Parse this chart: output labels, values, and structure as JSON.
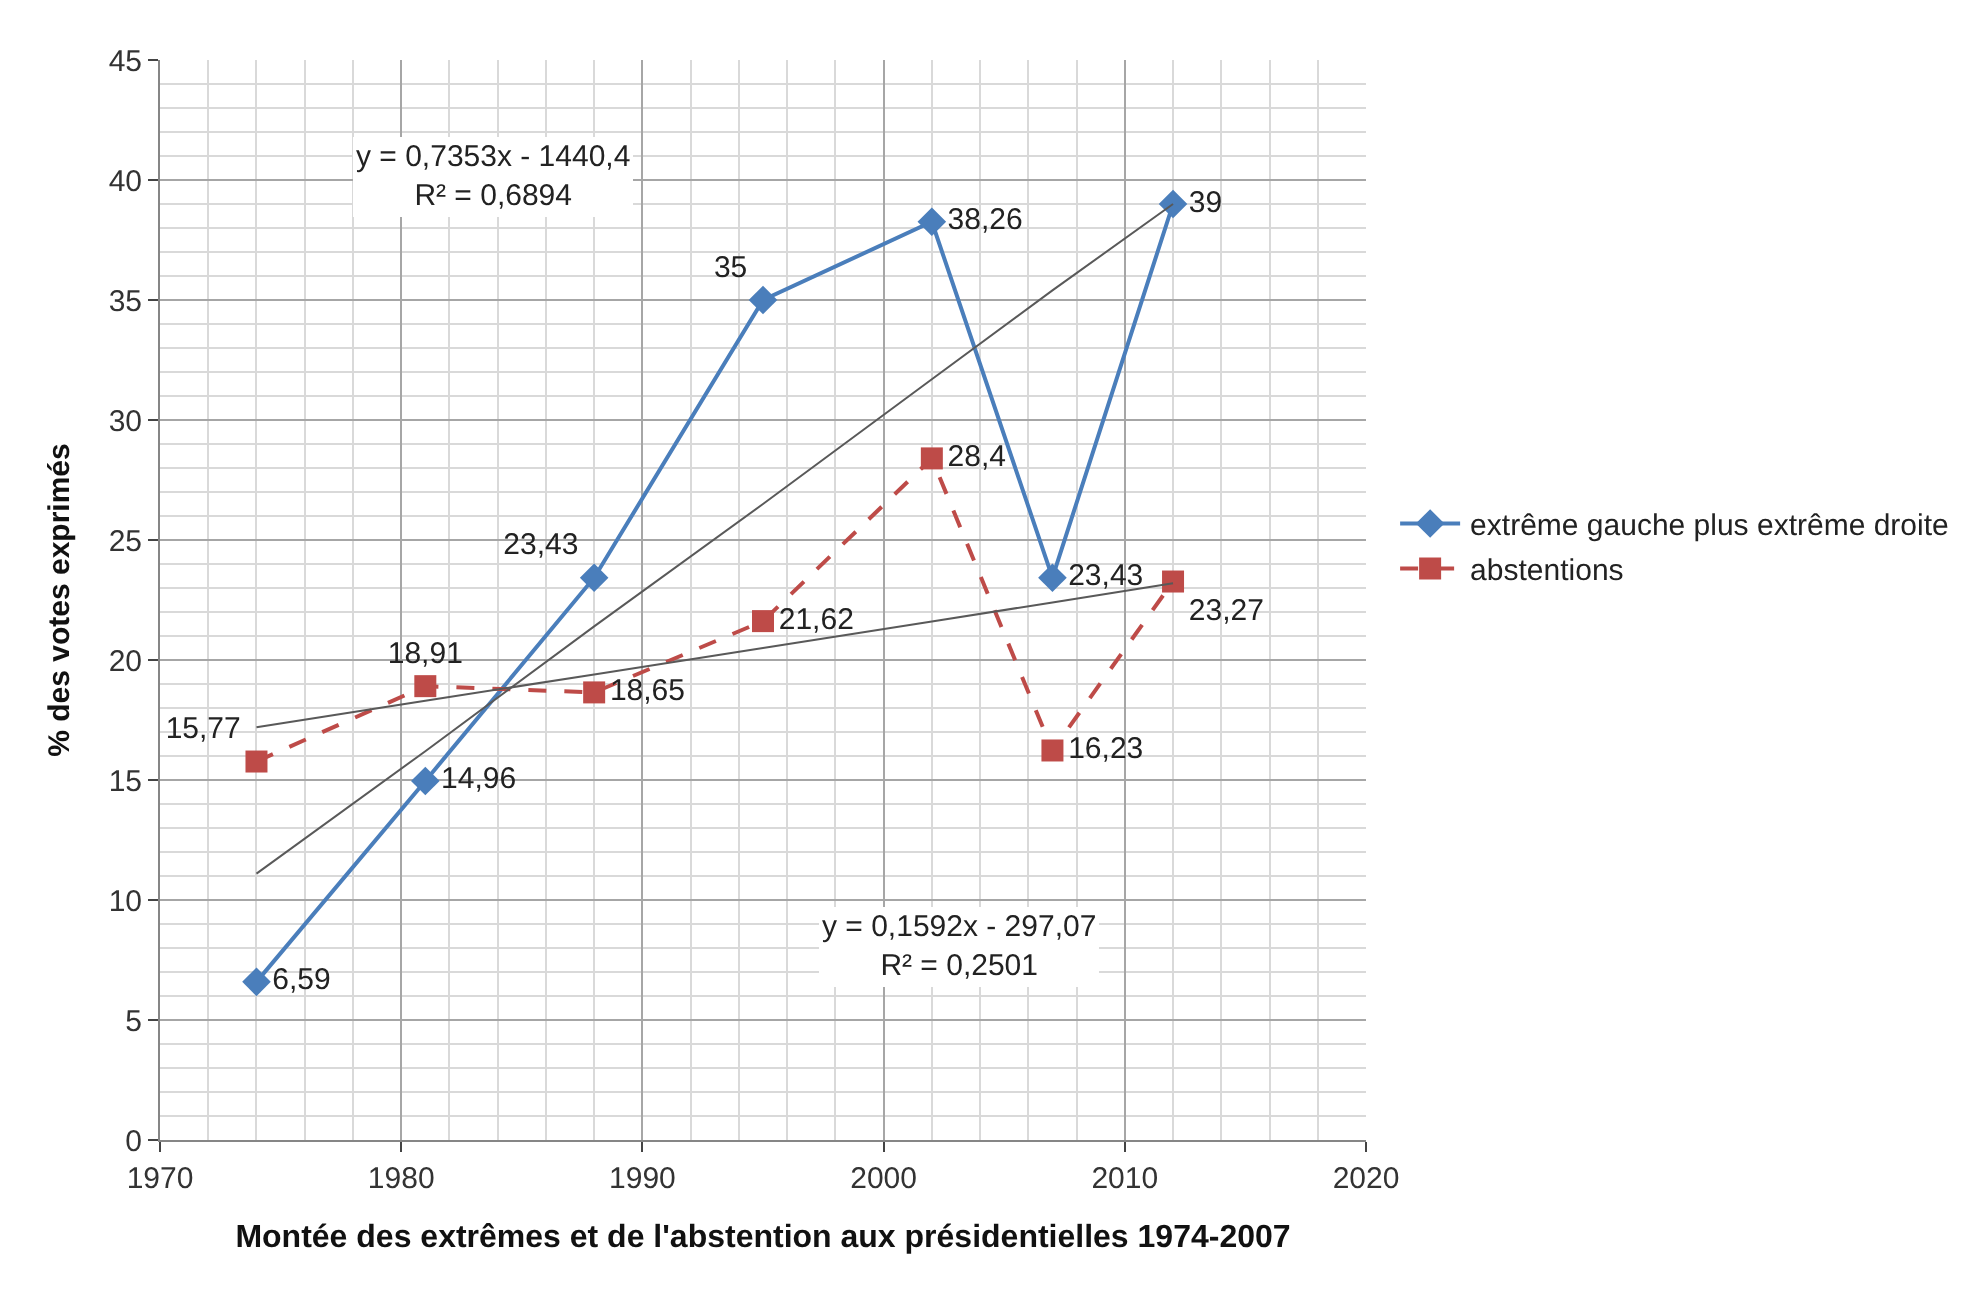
{
  "chart_data": {
    "type": "line",
    "xlabel": "Montée des extrêmes et de l'abstention aux présidentielles 1974-2007",
    "ylabel": "% des votes exprimés",
    "x": [
      1974,
      1981,
      1988,
      1995,
      2002,
      2007,
      2012
    ],
    "series": [
      {
        "name": "extrême gauche plus extrême droite",
        "color": "#4a7ebb",
        "marker": "diamond",
        "line_style": "solid",
        "values": [
          6.59,
          14.96,
          23.43,
          35,
          38.26,
          23.43,
          39
        ],
        "value_labels": [
          "6,59",
          "14,96",
          "23,43",
          "35",
          "38,26",
          "23,43",
          "39"
        ]
      },
      {
        "name": "abstentions",
        "color": "#be4b48",
        "marker": "square",
        "line_style": "dashed",
        "values": [
          15.77,
          18.91,
          18.65,
          21.62,
          28.4,
          16.23,
          23.27
        ],
        "value_labels": [
          "15,77",
          "18,91",
          "18,65",
          "21,62",
          "28,4",
          "16,23",
          "23,27"
        ]
      },
      {
        "type": "line",
        "color": "#595959",
        "marker": "none",
        "line_style": "solid",
        "values": [
          11.1,
          16.2,
          21.4,
          26.5,
          31.7,
          35.4,
          39.0
        ]
      },
      {
        "type": "line",
        "color": "#595959",
        "marker": "none",
        "line_style": "solid",
        "values": [
          17.2,
          18.3,
          19.4,
          20.5,
          21.6,
          22.4,
          23.2
        ]
      }
    ],
    "annotations": [
      "y = 0,7353x - 1440,4\nR² = 0,6894",
      "y = 0,1592x - 297,07\nR² = 0,2501"
    ],
    "xlim": [
      1970,
      2020
    ],
    "xticks": [
      1970,
      1980,
      1990,
      2000,
      2010,
      2020
    ],
    "ylim": [
      0,
      45
    ],
    "yticks": [
      0,
      5,
      10,
      15,
      20,
      25,
      30,
      35,
      40,
      45
    ],
    "grid": true,
    "legend": "right"
  }
}
